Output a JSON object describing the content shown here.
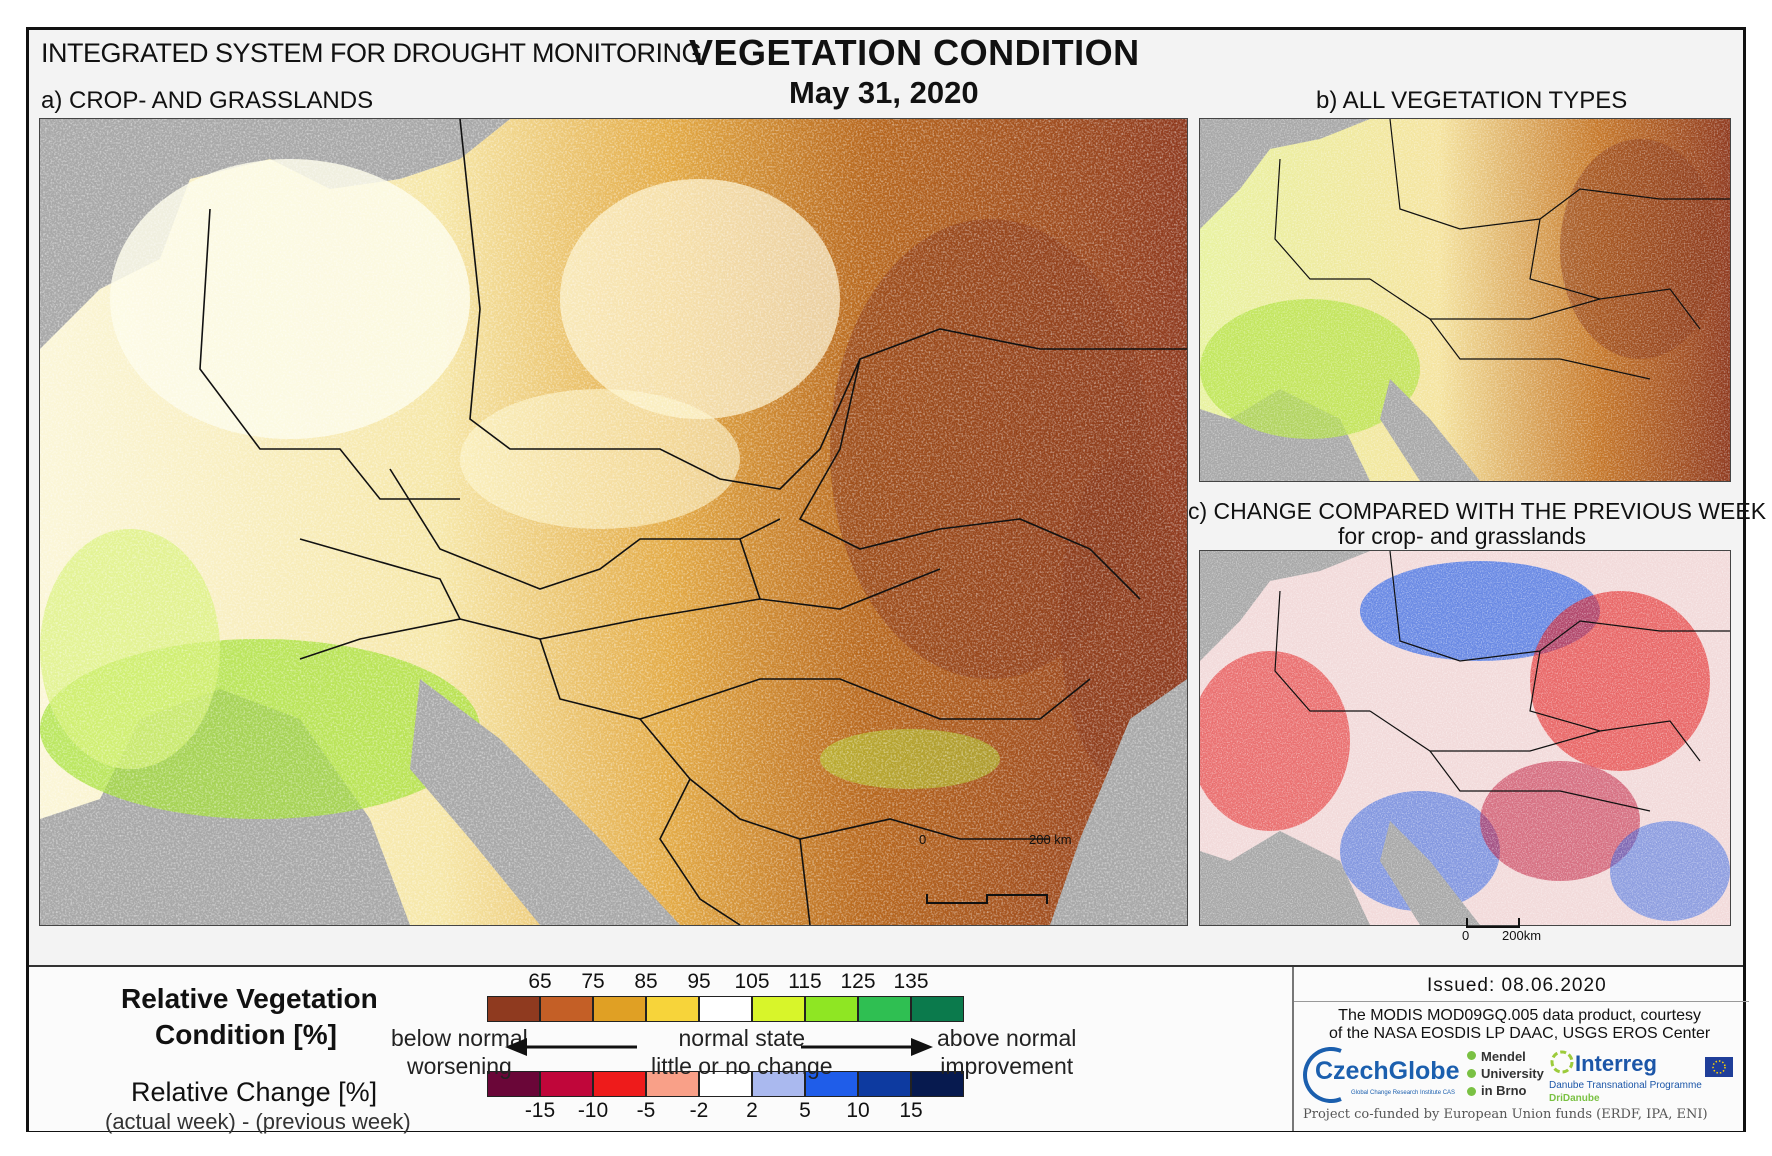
{
  "header": {
    "system": "INTEGRATED SYSTEM FOR DROUGHT MONITORING",
    "title": "VEGETATION CONDITION",
    "date": "May 31, 2020"
  },
  "panels": {
    "a": "a) CROP- AND GRASSLANDS",
    "b": "b) ALL VEGETATION TYPES",
    "c": "c) CHANGE COMPARED WITH THE PREVIOUS WEEK",
    "c_sub": "for crop- and grasslands"
  },
  "scalebars": {
    "a_zero": "0",
    "a_end": "200 km",
    "c_zero": "0",
    "c_end": "200km"
  },
  "legend": {
    "title_line1": "Relative Vegetation",
    "title_line2": "Condition [%]",
    "change_title": "Relative Change [%]",
    "change_sub": "(actual week) - (previous week)",
    "condition_ticks": [
      "65",
      "75",
      "85",
      "95",
      "105",
      "115",
      "125",
      "135"
    ],
    "condition_colors": [
      "#8f3a1f",
      "#c45f26",
      "#e0a024",
      "#f7d43a",
      "#ffffff",
      "#d8f52a",
      "#8fe623",
      "#2fbf52",
      "#0b7a4c"
    ],
    "change_ticks": [
      "-15",
      "-10",
      "-5",
      "-2",
      "2",
      "5",
      "10",
      "15"
    ],
    "change_colors": [
      "#6a0638",
      "#c0063a",
      "#ee1b1b",
      "#f9a088",
      "#ffffff",
      "#aab9ef",
      "#1f5de9",
      "#0d3aa0",
      "#071a4f"
    ],
    "below_normal": "below normal",
    "worsening": "worsening",
    "normal_state": "normal state",
    "little_change": "little or no change",
    "above_normal": "above normal",
    "improvement": "improvement"
  },
  "credits": {
    "issued": "Issued: 08.06.2020",
    "courtesy_line1": "The MODIS MOD09GQ.005 data product, courtesy",
    "courtesy_line2": "of the NASA EOSDIS LP DAAC, USGS EROS Center",
    "czechglobe": "CzechGlobe",
    "czechglobe_sub": "Global Change Research Institute CAS",
    "mendel_1": "Mendel",
    "mendel_2": "University",
    "mendel_3": "in Brno",
    "interreg": "Interreg",
    "interreg_sub": "Danube Transnational Programme",
    "dridanube": "DriDanube",
    "funded": "Project co-funded by European Union funds (ERDF, IPA, ENI)"
  },
  "colors": {
    "sea": "#a8a8a8",
    "brown": "#8f3a1f",
    "orange": "#e0a024",
    "green": "#8fe623",
    "red": "#ee1b1b",
    "blue": "#1f5de9"
  }
}
